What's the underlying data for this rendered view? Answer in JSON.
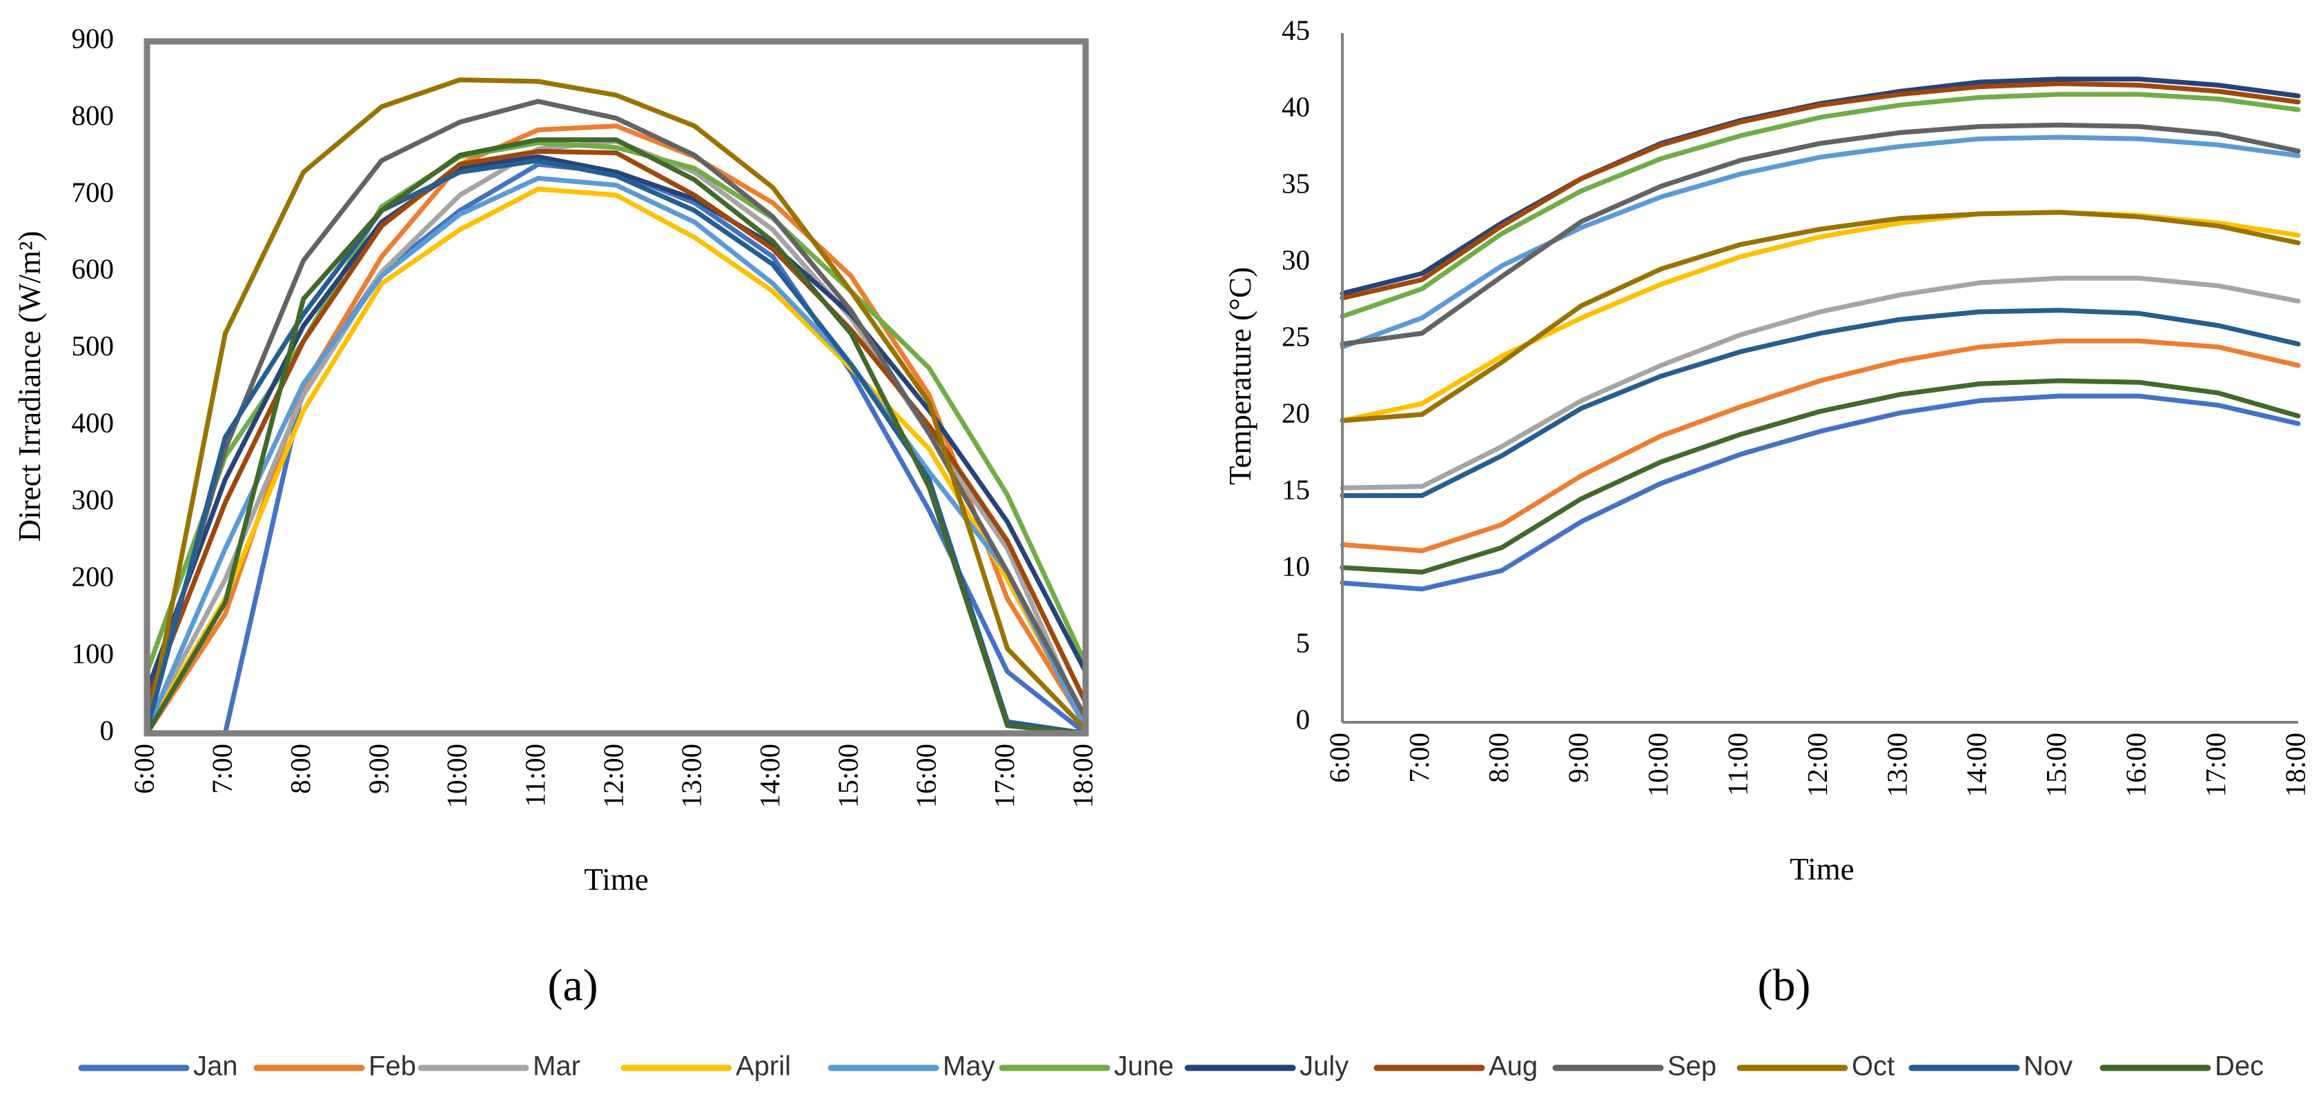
{
  "chart_data": [
    {
      "type": "line",
      "panel_label": "(a)",
      "title": "",
      "xlabel": "Time",
      "ylabel": "Direct Irradiance (W/m²)",
      "ylim": [
        0,
        900
      ],
      "yticks": [
        0,
        100,
        200,
        300,
        400,
        500,
        600,
        700,
        800,
        900
      ],
      "grid": false,
      "frame": true,
      "categories": [
        "6:00",
        "7:00",
        "8:00",
        "9:00",
        "10:00",
        "11:00",
        "12:00",
        "13:00",
        "14:00",
        "15:00",
        "16:00",
        "17:00",
        "18:00"
      ],
      "series": [
        {
          "name": "Jan",
          "color": "#4472C4",
          "values": [
            0,
            0,
            450,
            600,
            680,
            740,
            730,
            690,
            620,
            470,
            290,
            80,
            0
          ]
        },
        {
          "name": "Feb",
          "color": "#ED7D31",
          "values": [
            0,
            155,
            450,
            620,
            740,
            785,
            790,
            750,
            690,
            595,
            440,
            175,
            10
          ]
        },
        {
          "name": "Mar",
          "color": "#A5A5A5",
          "values": [
            10,
            200,
            440,
            600,
            700,
            760,
            770,
            730,
            655,
            540,
            390,
            240,
            10
          ]
        },
        {
          "name": "April",
          "color": "#FFC000",
          "values": [
            5,
            175,
            420,
            585,
            655,
            708,
            700,
            645,
            575,
            475,
            370,
            200,
            10
          ]
        },
        {
          "name": "May",
          "color": "#5B9BD5",
          "values": [
            5,
            240,
            455,
            595,
            675,
            722,
            713,
            665,
            585,
            480,
            340,
            210,
            5
          ]
        },
        {
          "name": "June",
          "color": "#70AD47",
          "values": [
            80,
            360,
            510,
            685,
            750,
            768,
            762,
            735,
            670,
            575,
            475,
            310,
            90
          ]
        },
        {
          "name": "July",
          "color": "#264478",
          "values": [
            55,
            330,
            530,
            665,
            735,
            750,
            730,
            695,
            635,
            545,
            420,
            275,
            80
          ]
        },
        {
          "name": "Aug",
          "color": "#9E480E",
          "values": [
            40,
            300,
            510,
            660,
            740,
            757,
            755,
            700,
            630,
            525,
            400,
            250,
            40
          ]
        },
        {
          "name": "Sep",
          "color": "#636363",
          "values": [
            20,
            370,
            615,
            745,
            795,
            822,
            800,
            752,
            672,
            550,
            390,
            210,
            20
          ]
        },
        {
          "name": "Oct",
          "color": "#997300",
          "values": [
            0,
            520,
            730,
            815,
            850,
            848,
            830,
            790,
            710,
            575,
            430,
            110,
            5
          ]
        },
        {
          "name": "Nov",
          "color": "#255E91",
          "values": [
            5,
            385,
            545,
            680,
            730,
            745,
            725,
            680,
            610,
            480,
            330,
            15,
            0
          ]
        },
        {
          "name": "Dec",
          "color": "#43682B",
          "values": [
            0,
            170,
            565,
            680,
            752,
            772,
            772,
            720,
            640,
            520,
            320,
            10,
            0
          ]
        }
      ]
    },
    {
      "type": "line",
      "panel_label": "(b)",
      "title": "",
      "xlabel": "Time",
      "ylabel": "Temperature (°C)",
      "ylim": [
        0,
        45
      ],
      "yticks": [
        0,
        5,
        10,
        15,
        20,
        25,
        30,
        35,
        40,
        45
      ],
      "grid": false,
      "frame": true,
      "categories": [
        "6:00",
        "7:00",
        "8:00",
        "9:00",
        "10:00",
        "11:00",
        "12:00",
        "13:00",
        "14:00",
        "15:00",
        "16:00",
        "17:00",
        "18:00"
      ],
      "series": [
        {
          "name": "Jan",
          "color": "#4472C4",
          "values": [
            9.1,
            8.7,
            9.9,
            13.1,
            15.6,
            17.5,
            19.0,
            20.2,
            21.0,
            21.3,
            21.3,
            20.7,
            19.5
          ]
        },
        {
          "name": "Feb",
          "color": "#ED7D31",
          "values": [
            11.6,
            11.2,
            12.9,
            16.1,
            18.7,
            20.6,
            22.3,
            23.6,
            24.5,
            24.9,
            24.9,
            24.5,
            23.3
          ]
        },
        {
          "name": "Mar",
          "color": "#A5A5A5",
          "values": [
            15.3,
            15.4,
            18.0,
            21.0,
            23.3,
            25.3,
            26.8,
            27.9,
            28.7,
            29.0,
            29.0,
            28.5,
            27.5
          ]
        },
        {
          "name": "April",
          "color": "#FFC000",
          "values": [
            19.7,
            20.8,
            23.9,
            26.4,
            28.6,
            30.4,
            31.7,
            32.6,
            33.2,
            33.3,
            33.1,
            32.6,
            31.8
          ]
        },
        {
          "name": "May",
          "color": "#5B9BD5",
          "values": [
            24.5,
            26.4,
            29.8,
            32.3,
            34.3,
            35.8,
            36.9,
            37.6,
            38.1,
            38.2,
            38.1,
            37.7,
            37.0
          ]
        },
        {
          "name": "June",
          "color": "#70AD47",
          "values": [
            26.5,
            28.3,
            31.9,
            34.7,
            36.8,
            38.3,
            39.5,
            40.3,
            40.8,
            41.0,
            41.0,
            40.7,
            40.0
          ]
        },
        {
          "name": "July",
          "color": "#264478",
          "values": [
            28.0,
            29.3,
            32.6,
            35.5,
            37.8,
            39.3,
            40.4,
            41.2,
            41.8,
            42.0,
            42.0,
            41.6,
            40.9
          ]
        },
        {
          "name": "Aug",
          "color": "#9E480E",
          "values": [
            27.7,
            28.9,
            32.4,
            35.5,
            37.7,
            39.2,
            40.3,
            41.0,
            41.5,
            41.7,
            41.6,
            41.2,
            40.5
          ]
        },
        {
          "name": "Sep",
          "color": "#636363",
          "values": [
            24.7,
            25.4,
            29.1,
            32.7,
            35.0,
            36.7,
            37.8,
            38.5,
            38.9,
            39.0,
            38.9,
            38.4,
            37.3
          ]
        },
        {
          "name": "Oct",
          "color": "#997300",
          "values": [
            19.7,
            20.1,
            23.5,
            27.2,
            29.6,
            31.2,
            32.2,
            32.9,
            33.2,
            33.3,
            33.0,
            32.4,
            31.3
          ]
        },
        {
          "name": "Nov",
          "color": "#255E91",
          "values": [
            14.8,
            14.8,
            17.4,
            20.5,
            22.6,
            24.2,
            25.4,
            26.3,
            26.8,
            26.9,
            26.7,
            25.9,
            24.7
          ]
        },
        {
          "name": "Dec",
          "color": "#43682B",
          "values": [
            10.1,
            9.8,
            11.4,
            14.6,
            17.0,
            18.8,
            20.3,
            21.4,
            22.1,
            22.3,
            22.2,
            21.5,
            20.0
          ]
        }
      ]
    }
  ],
  "legend": {
    "placement": "bottom",
    "entries": [
      "Jan",
      "Feb",
      "Mar",
      "April",
      "May",
      "June",
      "July",
      "Aug",
      "Sep",
      "Oct",
      "Nov",
      "Dec"
    ]
  }
}
